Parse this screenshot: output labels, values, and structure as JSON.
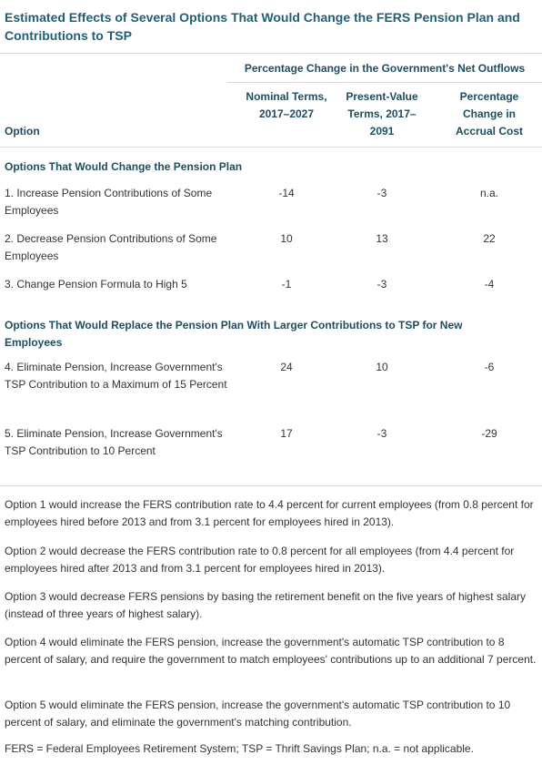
{
  "title": "Estimated Effects of Several Options That Would Change the FERS Pension Plan and Contributions to TSP",
  "table": {
    "spanning_header": "Percentage Change in the Government's Net Outflows",
    "columns": [
      "Option",
      "Nominal Terms, 2017–2027",
      "Present-Value Terms, 2017–2091",
      "Percentage Change in Accrual Cost"
    ],
    "sections": [
      {
        "heading": "Options That Would Change the Pension Plan",
        "rows": [
          [
            "1. Increase Pension Contributions of Some Employees",
            -14,
            -3,
            "n.a."
          ],
          [
            "2. Decrease Pension Contributions of Some Employees",
            10,
            13,
            22
          ],
          [
            "3. Change Pension Formula to High 5",
            -1,
            -3,
            -4
          ]
        ]
      },
      {
        "heading": "Options That Would Replace the Pension Plan With Larger Contributions to TSP for New Employees",
        "rows": [
          [
            "4. Eliminate Pension, Increase Government's TSP Contribution to a Maximum of 15 Percent",
            24,
            10,
            -6
          ],
          [
            "5. Eliminate Pension, Increase Government's TSP Contribution to 10 Percent",
            17,
            -3,
            -29
          ]
        ]
      }
    ]
  },
  "notes": [
    "Option 1 would increase the FERS contribution rate to 4.4 percent for current employees (from 0.8 percent for employees hired before 2013 and from 3.1 percent for employees hired in 2013).",
    "Option 2 would decrease the FERS contribution rate to 0.8 percent for all employees (from 4.4 percent for employees hired after 2013 and from 3.1 percent for employees hired in 2013).",
    "Option 3 would decrease FERS pensions by basing the retirement benefit on the five years of highest salary (instead of three years of highest salary).",
    "Option 4 would eliminate the FERS pension, increase the government's automatic TSP contribution to 8 percent of salary, and require the government to match employees' contributions up to an additional 7 percent.",
    "Option 5 would eliminate the FERS pension, increase the government's automatic TSP contribution to 10 percent of salary, and eliminate the government's matching contribution."
  ],
  "footnote": "FERS = Federal Employees Retirement System; TSP = Thrift Savings Plan; n.a. = not applicable."
}
